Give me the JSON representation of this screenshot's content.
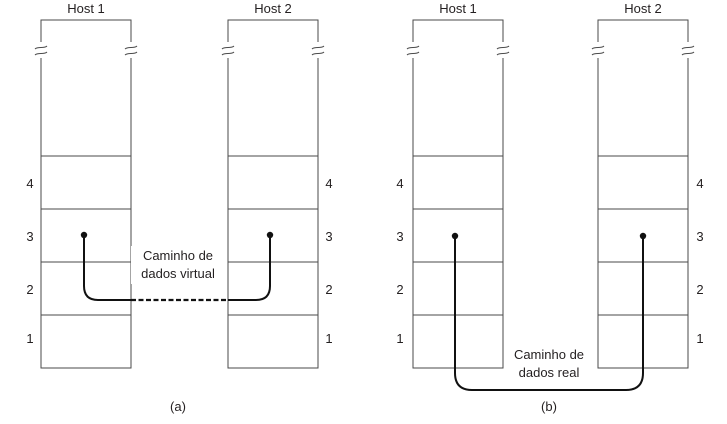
{
  "diagram_a": {
    "host1_label": "Host 1",
    "host2_label": "Host 2",
    "layers_left": [
      "4",
      "3",
      "2",
      "1"
    ],
    "layers_right": [
      "4",
      "3",
      "2",
      "1"
    ],
    "path_label_line1": "Caminho de",
    "path_label_line2": "dados virtual",
    "caption": "(a)"
  },
  "diagram_b": {
    "host1_label": "Host 1",
    "host2_label": "Host 2",
    "layers_left": [
      "4",
      "3",
      "2",
      "1"
    ],
    "layers_right": [
      "4",
      "3",
      "2",
      "1"
    ],
    "path_label_line1": "Caminho de",
    "path_label_line2": "dados real",
    "caption": "(b)"
  }
}
